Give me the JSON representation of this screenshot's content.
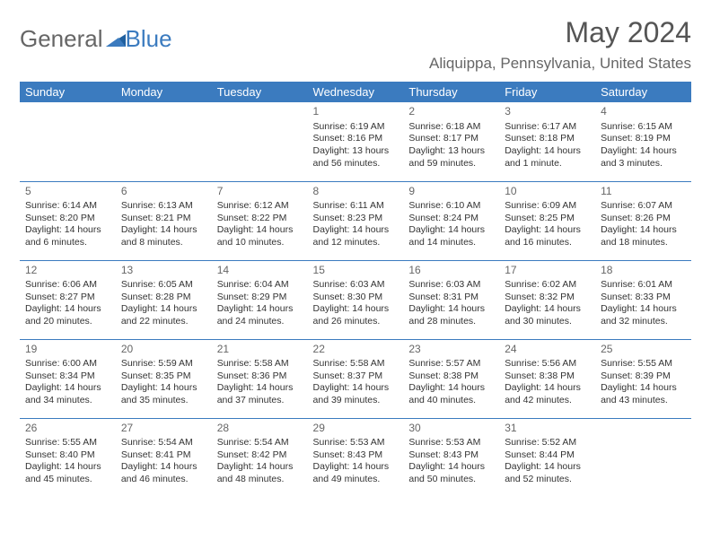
{
  "brand": {
    "part1": "General",
    "part2": "Blue"
  },
  "title": "May 2024",
  "location": "Aliquippa, Pennsylvania, United States",
  "colors": {
    "header_bg": "#3b7bbf",
    "header_text": "#ffffff",
    "border": "#3b7bbf",
    "body_text": "#333333",
    "muted": "#666666",
    "background": "#ffffff"
  },
  "fonts": {
    "title_size": 32,
    "location_size": 17,
    "dayhead_size": 13,
    "cell_size": 10.5,
    "daynum_size": 12
  },
  "day_headers": [
    "Sunday",
    "Monday",
    "Tuesday",
    "Wednesday",
    "Thursday",
    "Friday",
    "Saturday"
  ],
  "weeks": [
    [
      null,
      null,
      null,
      {
        "n": "1",
        "sr": "Sunrise: 6:19 AM",
        "ss": "Sunset: 8:16 PM",
        "d1": "Daylight: 13 hours",
        "d2": "and 56 minutes."
      },
      {
        "n": "2",
        "sr": "Sunrise: 6:18 AM",
        "ss": "Sunset: 8:17 PM",
        "d1": "Daylight: 13 hours",
        "d2": "and 59 minutes."
      },
      {
        "n": "3",
        "sr": "Sunrise: 6:17 AM",
        "ss": "Sunset: 8:18 PM",
        "d1": "Daylight: 14 hours",
        "d2": "and 1 minute."
      },
      {
        "n": "4",
        "sr": "Sunrise: 6:15 AM",
        "ss": "Sunset: 8:19 PM",
        "d1": "Daylight: 14 hours",
        "d2": "and 3 minutes."
      }
    ],
    [
      {
        "n": "5",
        "sr": "Sunrise: 6:14 AM",
        "ss": "Sunset: 8:20 PM",
        "d1": "Daylight: 14 hours",
        "d2": "and 6 minutes."
      },
      {
        "n": "6",
        "sr": "Sunrise: 6:13 AM",
        "ss": "Sunset: 8:21 PM",
        "d1": "Daylight: 14 hours",
        "d2": "and 8 minutes."
      },
      {
        "n": "7",
        "sr": "Sunrise: 6:12 AM",
        "ss": "Sunset: 8:22 PM",
        "d1": "Daylight: 14 hours",
        "d2": "and 10 minutes."
      },
      {
        "n": "8",
        "sr": "Sunrise: 6:11 AM",
        "ss": "Sunset: 8:23 PM",
        "d1": "Daylight: 14 hours",
        "d2": "and 12 minutes."
      },
      {
        "n": "9",
        "sr": "Sunrise: 6:10 AM",
        "ss": "Sunset: 8:24 PM",
        "d1": "Daylight: 14 hours",
        "d2": "and 14 minutes."
      },
      {
        "n": "10",
        "sr": "Sunrise: 6:09 AM",
        "ss": "Sunset: 8:25 PM",
        "d1": "Daylight: 14 hours",
        "d2": "and 16 minutes."
      },
      {
        "n": "11",
        "sr": "Sunrise: 6:07 AM",
        "ss": "Sunset: 8:26 PM",
        "d1": "Daylight: 14 hours",
        "d2": "and 18 minutes."
      }
    ],
    [
      {
        "n": "12",
        "sr": "Sunrise: 6:06 AM",
        "ss": "Sunset: 8:27 PM",
        "d1": "Daylight: 14 hours",
        "d2": "and 20 minutes."
      },
      {
        "n": "13",
        "sr": "Sunrise: 6:05 AM",
        "ss": "Sunset: 8:28 PM",
        "d1": "Daylight: 14 hours",
        "d2": "and 22 minutes."
      },
      {
        "n": "14",
        "sr": "Sunrise: 6:04 AM",
        "ss": "Sunset: 8:29 PM",
        "d1": "Daylight: 14 hours",
        "d2": "and 24 minutes."
      },
      {
        "n": "15",
        "sr": "Sunrise: 6:03 AM",
        "ss": "Sunset: 8:30 PM",
        "d1": "Daylight: 14 hours",
        "d2": "and 26 minutes."
      },
      {
        "n": "16",
        "sr": "Sunrise: 6:03 AM",
        "ss": "Sunset: 8:31 PM",
        "d1": "Daylight: 14 hours",
        "d2": "and 28 minutes."
      },
      {
        "n": "17",
        "sr": "Sunrise: 6:02 AM",
        "ss": "Sunset: 8:32 PM",
        "d1": "Daylight: 14 hours",
        "d2": "and 30 minutes."
      },
      {
        "n": "18",
        "sr": "Sunrise: 6:01 AM",
        "ss": "Sunset: 8:33 PM",
        "d1": "Daylight: 14 hours",
        "d2": "and 32 minutes."
      }
    ],
    [
      {
        "n": "19",
        "sr": "Sunrise: 6:00 AM",
        "ss": "Sunset: 8:34 PM",
        "d1": "Daylight: 14 hours",
        "d2": "and 34 minutes."
      },
      {
        "n": "20",
        "sr": "Sunrise: 5:59 AM",
        "ss": "Sunset: 8:35 PM",
        "d1": "Daylight: 14 hours",
        "d2": "and 35 minutes."
      },
      {
        "n": "21",
        "sr": "Sunrise: 5:58 AM",
        "ss": "Sunset: 8:36 PM",
        "d1": "Daylight: 14 hours",
        "d2": "and 37 minutes."
      },
      {
        "n": "22",
        "sr": "Sunrise: 5:58 AM",
        "ss": "Sunset: 8:37 PM",
        "d1": "Daylight: 14 hours",
        "d2": "and 39 minutes."
      },
      {
        "n": "23",
        "sr": "Sunrise: 5:57 AM",
        "ss": "Sunset: 8:38 PM",
        "d1": "Daylight: 14 hours",
        "d2": "and 40 minutes."
      },
      {
        "n": "24",
        "sr": "Sunrise: 5:56 AM",
        "ss": "Sunset: 8:38 PM",
        "d1": "Daylight: 14 hours",
        "d2": "and 42 minutes."
      },
      {
        "n": "25",
        "sr": "Sunrise: 5:55 AM",
        "ss": "Sunset: 8:39 PM",
        "d1": "Daylight: 14 hours",
        "d2": "and 43 minutes."
      }
    ],
    [
      {
        "n": "26",
        "sr": "Sunrise: 5:55 AM",
        "ss": "Sunset: 8:40 PM",
        "d1": "Daylight: 14 hours",
        "d2": "and 45 minutes."
      },
      {
        "n": "27",
        "sr": "Sunrise: 5:54 AM",
        "ss": "Sunset: 8:41 PM",
        "d1": "Daylight: 14 hours",
        "d2": "and 46 minutes."
      },
      {
        "n": "28",
        "sr": "Sunrise: 5:54 AM",
        "ss": "Sunset: 8:42 PM",
        "d1": "Daylight: 14 hours",
        "d2": "and 48 minutes."
      },
      {
        "n": "29",
        "sr": "Sunrise: 5:53 AM",
        "ss": "Sunset: 8:43 PM",
        "d1": "Daylight: 14 hours",
        "d2": "and 49 minutes."
      },
      {
        "n": "30",
        "sr": "Sunrise: 5:53 AM",
        "ss": "Sunset: 8:43 PM",
        "d1": "Daylight: 14 hours",
        "d2": "and 50 minutes."
      },
      {
        "n": "31",
        "sr": "Sunrise: 5:52 AM",
        "ss": "Sunset: 8:44 PM",
        "d1": "Daylight: 14 hours",
        "d2": "and 52 minutes."
      },
      null
    ]
  ]
}
